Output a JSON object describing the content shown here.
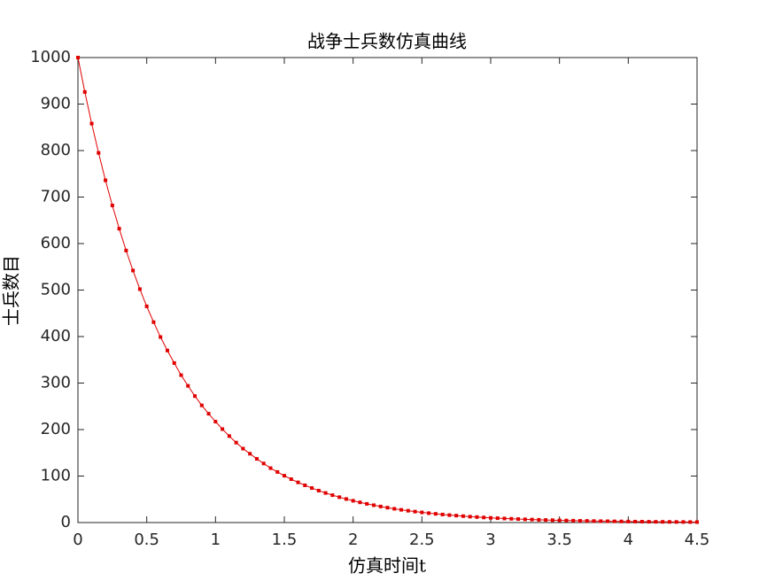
{
  "chart_data": {
    "type": "line",
    "title": "战争士兵数仿真曲线",
    "xlabel": "仿真时间t",
    "ylabel": "士兵数目",
    "x": [
      0,
      0.05,
      0.1,
      0.15,
      0.2,
      0.25,
      0.3,
      0.35,
      0.4,
      0.45,
      0.5,
      0.55,
      0.6,
      0.65,
      0.7,
      0.75,
      0.8,
      0.85,
      0.9,
      0.95,
      1,
      1.05,
      1.1,
      1.15,
      1.2,
      1.25,
      1.3,
      1.35,
      1.4,
      1.45,
      1.5,
      1.55,
      1.6,
      1.65,
      1.7,
      1.75,
      1.8,
      1.85,
      1.9,
      1.95,
      2,
      2.05,
      2.1,
      2.15,
      2.2,
      2.25,
      2.3,
      2.35,
      2.4,
      2.45,
      2.5,
      2.55,
      2.6,
      2.65,
      2.7,
      2.75,
      2.8,
      2.85,
      2.9,
      2.95,
      3,
      3.05,
      3.1,
      3.15,
      3.2,
      3.25,
      3.3,
      3.35,
      3.4,
      3.45,
      3.5,
      3.55,
      3.6,
      3.65,
      3.7,
      3.75,
      3.8,
      3.85,
      3.9,
      3.95,
      4,
      4.05,
      4.1,
      4.15,
      4.2,
      4.25,
      4.3,
      4.35,
      4.4,
      4.45,
      4.5
    ],
    "series": [
      {
        "name": "士兵数目",
        "color": "#e00000",
        "values": [
          1000,
          926,
          858,
          795,
          736,
          682,
          632,
          585,
          542,
          502,
          465,
          431,
          399,
          370,
          343,
          317,
          294,
          272,
          252,
          234,
          217,
          201,
          186,
          172,
          159,
          148,
          137,
          127,
          117,
          108.8,
          100.7,
          93.3,
          86.4,
          80.1,
          74.2,
          68.7,
          63.6,
          58.9,
          54.6,
          50.6,
          46.9,
          43.4,
          40.2,
          37.3,
          34.5,
          32,
          29.6,
          27.4,
          25.4,
          23.5,
          21.8,
          20.2,
          18.7,
          17.3,
          16,
          14.9,
          13.8,
          12.7,
          11.8,
          10.9,
          10.1,
          9.4,
          8.7,
          8.1,
          7.5,
          6.9,
          6.4,
          5.9,
          5.5,
          5.1,
          4.7,
          4.4,
          4,
          3.7,
          3.5,
          3.2,
          3,
          2.8,
          2.6,
          2.4,
          2.2,
          2,
          1.9,
          1.7,
          1.6,
          1.5,
          1.4,
          1.3,
          1.2,
          1.1,
          1
        ]
      }
    ],
    "xlim": [
      0,
      4.5
    ],
    "xticks": [
      0,
      0.5,
      1,
      1.5,
      2,
      2.5,
      3,
      3.5,
      4,
      4.5
    ],
    "ylim": [
      0,
      1000
    ],
    "yticks": [
      0,
      100,
      200,
      300,
      400,
      500,
      600,
      700,
      800,
      900,
      1000
    ]
  }
}
